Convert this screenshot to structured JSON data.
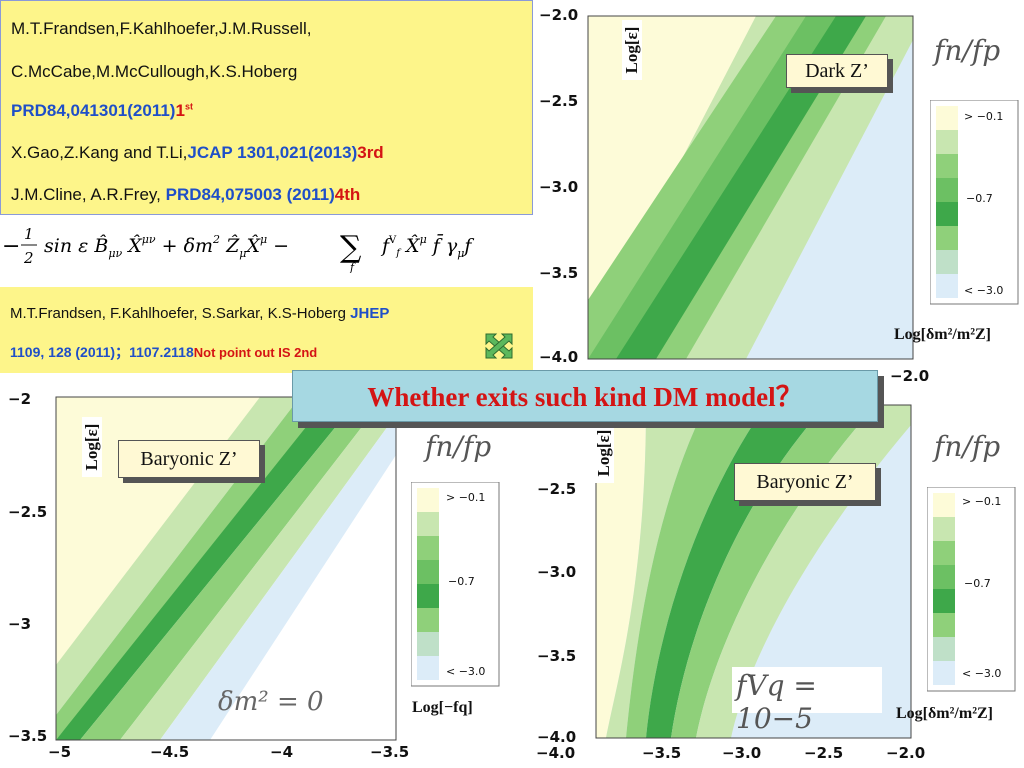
{
  "references": {
    "line1": "M.T.Frandsen,F.Kahlhoefer,J.M.Russell,",
    "line2": "C.McCabe,M.McCullough,K.S.Hoberg",
    "line3_blue": "PRD84,041301(2011)",
    "line3_red": "1",
    "line3_sup": "st",
    "line4_plain": "X.Gao,Z.Kang and T.Li,",
    "line4_blue": "JCAP 1301,021(2013)",
    "line4_red": "3rd",
    "line5_plain": "J.M.Cline, A.R.Frey, ",
    "line5_blue": "PRD84,075003 (2011)",
    "line5_red": "4th"
  },
  "formula": "− ½ sin ε B̂μν X̂μν + δm² Ẑμ X̂μ − Σf fVf X̂μ f̄ γμ f",
  "reference2": {
    "line1_plain": "M.T.Frandsen, F.Kahlhoefer, S.Sarkar, K.S-Hoberg ",
    "line1_blue": "JHEP",
    "line2_blue": "1109, 128 (2011)；1107.2118",
    "line2_red": "Not point out IS 2nd"
  },
  "question": "Whether exits such kind DM model？",
  "plots": {
    "top_right": {
      "label": "Dark Z’",
      "ylabel": "Log[ε]",
      "ratio": "fn/fp",
      "yticks": [
        "−2.0",
        "−2.5",
        "−3.0",
        "−3.5",
        "−4.0"
      ],
      "legend": [
        "> −0.1",
        "−0.7",
        "< −3.0"
      ],
      "legend_axis": "Log[δm²/m²Z]"
    },
    "bottom_left": {
      "label": "Baryonic Z’",
      "ylabel": "Log[ε]",
      "ratio": "fn/fp",
      "yticks": [
        "−2",
        "−2.5",
        "−3",
        "−3.5"
      ],
      "xticks": [
        "−5",
        "−4.5",
        "−4",
        "−3.5"
      ],
      "annotation": "δm² = 0",
      "legend": [
        "> −0.1",
        "−0.7",
        "< −3.0"
      ],
      "legend_axis": "Log[−fq]"
    },
    "bottom_right": {
      "label": "Baryonic Z’",
      "ylabel": "Log[ε]",
      "ratio": "fn/fp",
      "yticks": [
        "−2.5",
        "−3.0",
        "−3.5",
        "−4.0"
      ],
      "xticks": [
        "−4.0",
        "−3.5",
        "−3.0",
        "−2.5",
        "−2.0"
      ],
      "corner_tick": "−2.0",
      "annotation": "fVq = 10−5",
      "legend": [
        "> −0.1",
        "−0.7",
        "< −3.0"
      ],
      "legend_axis": "Log[δm²/m²Z]"
    }
  },
  "colors": {
    "ref_bg": "#fdf58a",
    "banner_bg": "#a6d8e2",
    "highlight_red": "#d41414",
    "ref_blue": "#1f4fc8",
    "band_outer": "#fdfbd8",
    "band_light": "#c8e6b0",
    "band_mid": "#8fd07a",
    "band_core": "#3ea84a",
    "region_blue": "#dcecf8"
  }
}
